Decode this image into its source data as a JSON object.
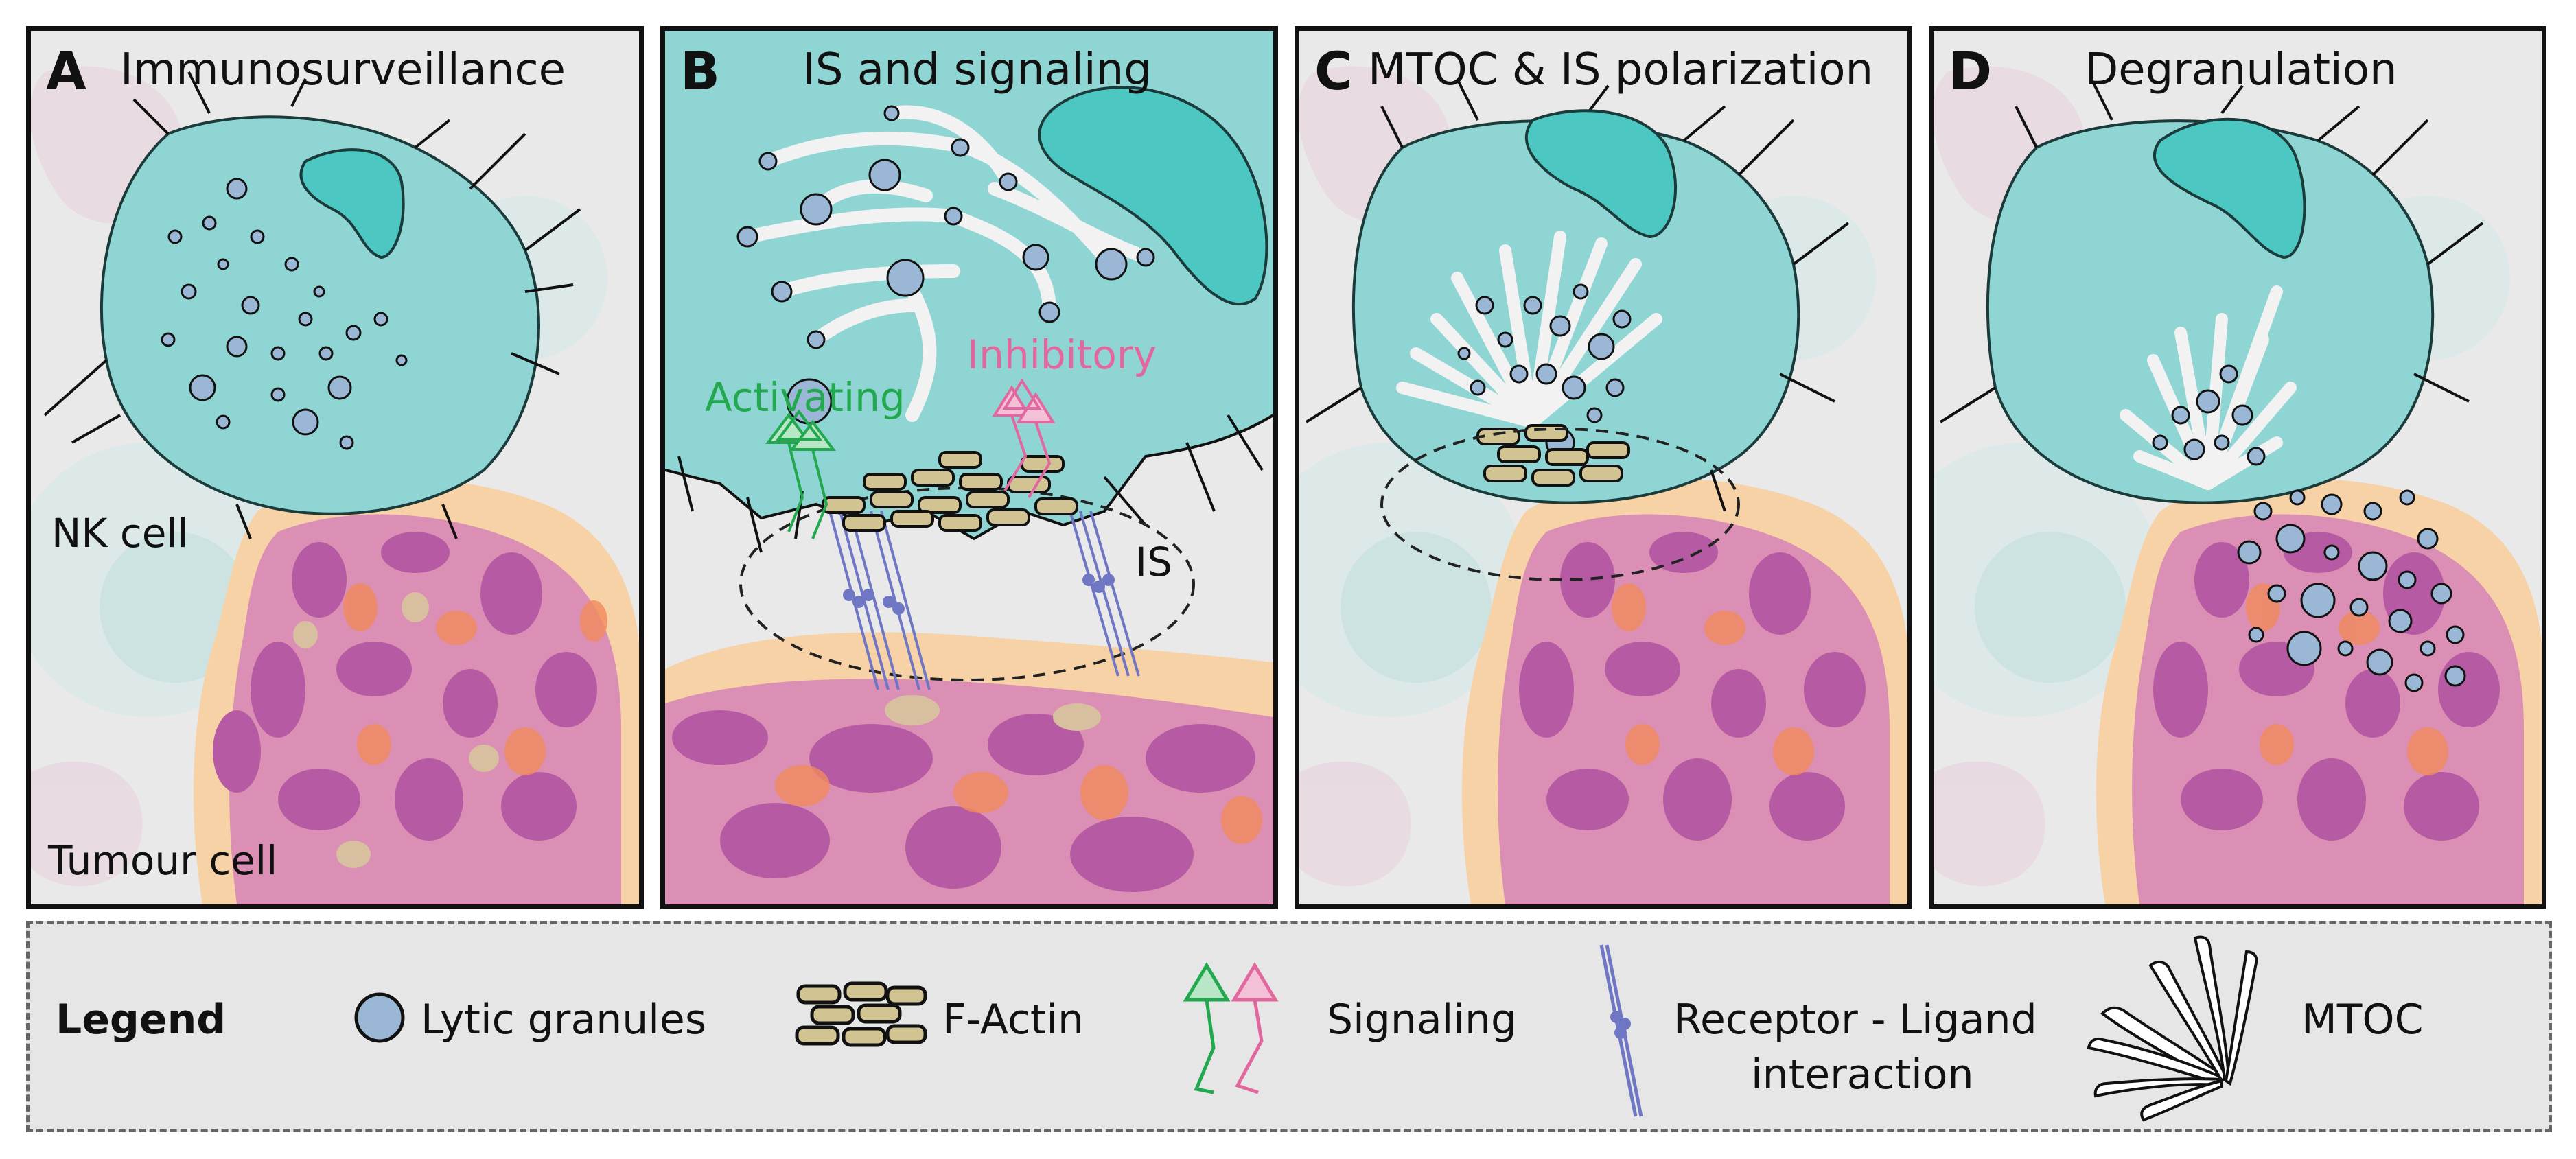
{
  "panels": [
    {
      "letter": "A",
      "title": "Immunosurveillance"
    },
    {
      "letter": "B",
      "title": "IS and signaling"
    },
    {
      "letter": "C",
      "title": "MTOC & IS polarization"
    },
    {
      "letter": "D",
      "title": "Degranulation"
    }
  ],
  "labels": {
    "nk_cell": "NK cell",
    "tumour_cell": "Tumour cell",
    "activating": "Activating",
    "inhibitory": "Inhibitory",
    "is": "IS"
  },
  "legend": {
    "title": "Legend",
    "lytic_granules": "Lytic granules",
    "f_actin": "F-Actin",
    "signaling": "Signaling",
    "receptor_line1": "Receptor - Ligand",
    "receptor_line2": "interaction",
    "mtoc": "MTOC"
  },
  "colors": {
    "nk_cell": "#8fd5d3",
    "nucleus": "#4dc7c1",
    "granule": "#9ab8d6",
    "tumour": "#dc8fb4",
    "tumour_dark": "#b65ba3",
    "actin": "#d2c393",
    "activating": "#22a94f",
    "inhibitory": "#e2679e",
    "receptor": "#6f77c4"
  }
}
